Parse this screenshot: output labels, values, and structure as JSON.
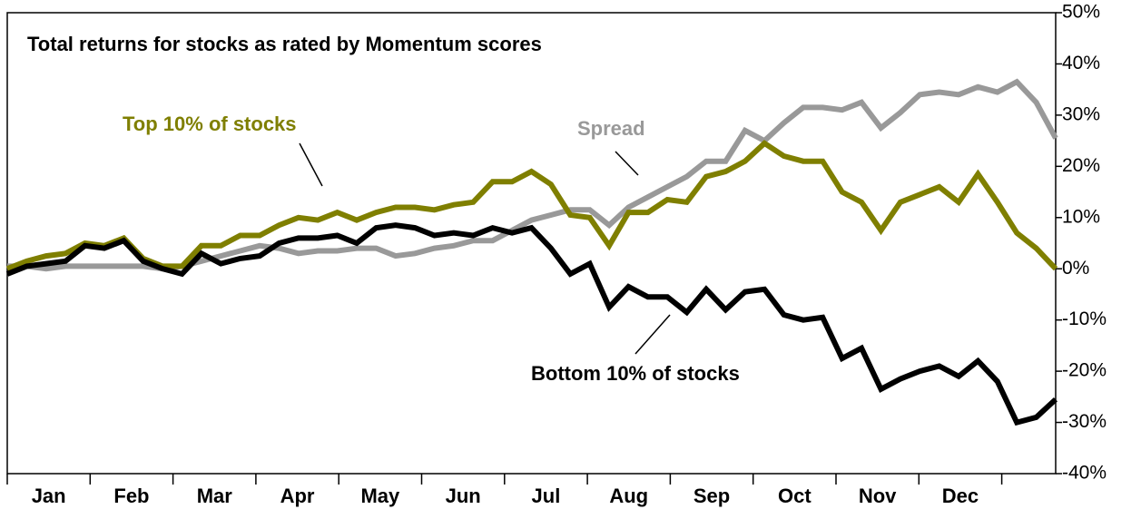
{
  "chart_data": {
    "type": "line",
    "title": "Total returns for stocks as rated by Momentum scores",
    "x_tick_labels": [
      "Jan",
      "Feb",
      "Mar",
      "Apr",
      "May",
      "Jun",
      "Jul",
      "Aug",
      "Sep",
      "Oct",
      "Nov",
      "Dec"
    ],
    "series": [
      {
        "name": "Top 10% of stocks",
        "color": "#7f7f00",
        "values": [
          0,
          1.5,
          2.5,
          3,
          5,
          4.5,
          6,
          2,
          0.5,
          0.5,
          4.5,
          4.5,
          6.5,
          6.5,
          8.5,
          10,
          9.5,
          11,
          9.5,
          11,
          12,
          12,
          11.5,
          12.5,
          13,
          17,
          17,
          19,
          16.5,
          10.5,
          10,
          4.5,
          11,
          11,
          13.5,
          13,
          18,
          19,
          21,
          24.5,
          22,
          21,
          21,
          15,
          13,
          7.5,
          13,
          14.5,
          16,
          13,
          18.5,
          13,
          7,
          4,
          0
        ]
      },
      {
        "name": "Bottom 10% of stocks",
        "color": "#000000",
        "values": [
          -1,
          0.5,
          1,
          1.5,
          4.5,
          4,
          5.5,
          1.5,
          0,
          -1,
          3,
          1,
          2,
          2.5,
          5,
          6,
          6,
          6.5,
          5,
          8,
          8.5,
          8,
          6.5,
          7,
          6.5,
          8,
          7,
          8,
          4,
          -1,
          1,
          -7.5,
          -3.5,
          -5.5,
          -5.5,
          -8.5,
          -4,
          -8,
          -4.5,
          -4,
          -9,
          -10,
          -9.5,
          -17.5,
          -15.5,
          -23.5,
          -21.5,
          -20,
          -19,
          -21,
          -18,
          -22,
          -30,
          -29,
          -25.5
        ]
      },
      {
        "name": "Spread",
        "color": "#999999",
        "values": [
          0.5,
          0.5,
          0,
          0.5,
          0.5,
          0.5,
          0.5,
          0.5,
          0,
          0.5,
          1.5,
          2.5,
          3.5,
          4.5,
          4,
          3,
          3.5,
          3.5,
          4,
          4,
          2.5,
          3,
          4,
          4.5,
          5.5,
          5.5,
          7.5,
          9.5,
          10.5,
          11.5,
          11.5,
          8.5,
          12,
          14,
          16,
          18,
          21,
          21,
          27,
          25,
          28.5,
          31.5,
          31.5,
          31,
          32.5,
          27.5,
          30.5,
          34,
          34.5,
          34,
          35.5,
          34.5,
          36.5,
          32.5,
          25.5
        ]
      }
    ],
    "ylim": [
      -40,
      50
    ],
    "yticks": [
      {
        "value": -40,
        "label": "-40%"
      },
      {
        "value": -30,
        "label": "-30%"
      },
      {
        "value": -20,
        "label": "-20%"
      },
      {
        "value": -10,
        "label": "-10%"
      },
      {
        "value": 0,
        "label": "0%"
      },
      {
        "value": 10,
        "label": "10%"
      },
      {
        "value": 20,
        "label": "20%"
      },
      {
        "value": 30,
        "label": "30%"
      },
      {
        "value": 40,
        "label": "40%"
      },
      {
        "value": 50,
        "label": "50%"
      }
    ]
  }
}
